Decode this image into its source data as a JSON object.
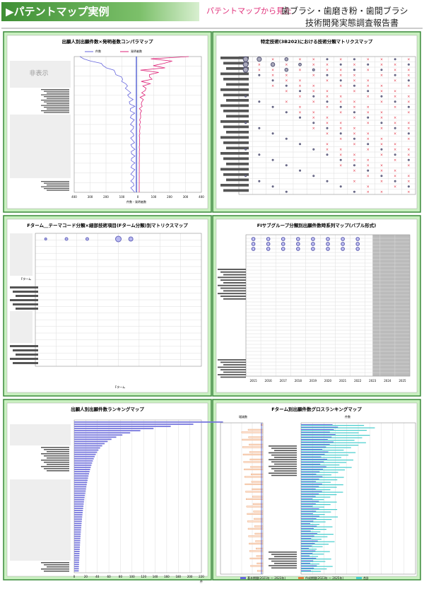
{
  "header": {
    "title": "▶パテントマップ実例",
    "lead": "パテントマップから見た",
    "subject": "歯ブラシ・歯磨き粉・歯間ブラシ",
    "report": "技術開発実態調査報告書"
  },
  "panels": [
    {
      "title": "出願人別出願件数×発明者数コンパラマップ",
      "legend": [
        "件数",
        "発明者数"
      ],
      "hidden": "非表示",
      "xtick_labels": [
        "400",
        "300",
        "200",
        "100",
        "0",
        "100",
        "200",
        "300",
        "400"
      ],
      "xlabel": "件数・発明者数"
    },
    {
      "title": "特定技術(3B202)における技術分類マトリクスマップ"
    },
    {
      "title": "Fターム＿テーマコード分類×細部技術項目(Fターム分類)別マトリクスマップ",
      "ylabel": "Fターム",
      "xlabel": "Fターム"
    },
    {
      "title": "FIサブグループ分類別出願件数時系列マップ(バブル形式)",
      "years": [
        "2015",
        "2016",
        "2017",
        "2018",
        "2019",
        "2020",
        "2021",
        "2022",
        "2023",
        "2024",
        "2025"
      ]
    },
    {
      "title": "出願人別出願件数ランキングマップ",
      "xlim": [
        0,
        220
      ],
      "xticks": [
        0,
        20,
        40,
        60,
        80,
        100,
        120,
        140,
        160,
        180,
        200,
        220
      ],
      "unit": "件"
    },
    {
      "title": "Fターム別出願件数グロスランキングマップ",
      "left_label": "増減数",
      "right_label": "件数",
      "legend": [
        "基本期間(2021年 ～ 2023年)",
        "作成期間(2023年 ～ 2025年)",
        "合計"
      ]
    }
  ]
}
